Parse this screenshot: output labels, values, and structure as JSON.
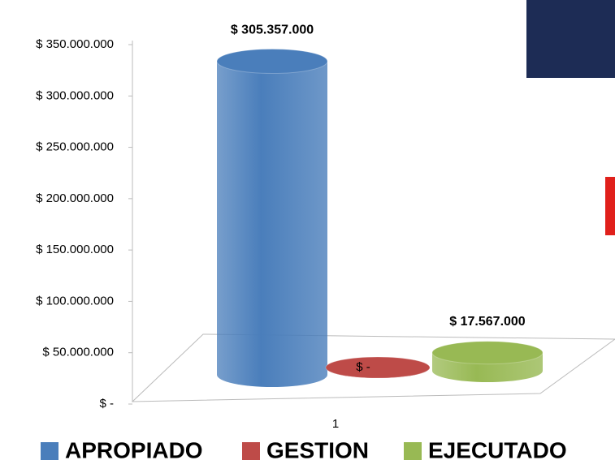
{
  "chart_data": {
    "type": "bar3d",
    "categories": [
      "1"
    ],
    "series": [
      {
        "name": "APROPIADO",
        "color": "#4a7ebb",
        "values": [
          305357000
        ],
        "value_labels": [
          "$ 305.357.000"
        ]
      },
      {
        "name": "GESTION",
        "color": "#be4b48",
        "values": [
          0
        ],
        "value_labels": [
          "$ -"
        ]
      },
      {
        "name": "EJECUTADO",
        "color": "#98b954",
        "values": [
          17567000
        ],
        "value_labels": [
          "$ 17.567.000"
        ]
      }
    ],
    "ylim": [
      0,
      350000000
    ],
    "yticks": [
      {
        "value": 0,
        "label": "$ -"
      },
      {
        "value": 50000000,
        "label": "$ 50.000.000"
      },
      {
        "value": 100000000,
        "label": "$ 100.000.000"
      },
      {
        "value": 150000000,
        "label": "$ 150.000.000"
      },
      {
        "value": 200000000,
        "label": "$ 200.000.000"
      },
      {
        "value": 250000000,
        "label": "$ 250.000.000"
      },
      {
        "value": 300000000,
        "label": "$ 300.000.000"
      },
      {
        "value": 350000000,
        "label": "$ 350.000.000"
      }
    ]
  }
}
